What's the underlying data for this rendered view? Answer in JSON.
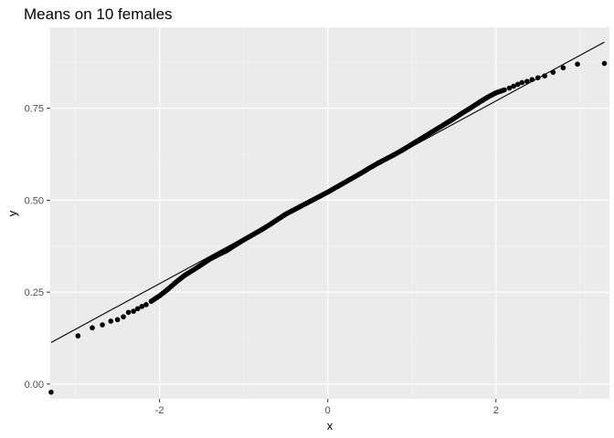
{
  "chart_data": {
    "type": "scatter",
    "title": "Means on 10 females",
    "xlabel": "x",
    "ylabel": "y",
    "xlim": [
      -3.3,
      3.35
    ],
    "ylim": [
      -0.04,
      0.97
    ],
    "x_ticks": [
      -2,
      0,
      2
    ],
    "x_tick_labels": [
      "-2",
      "0",
      "2"
    ],
    "y_ticks": [
      0.0,
      0.25,
      0.5,
      0.75
    ],
    "y_tick_labels": [
      "0.00",
      "0.25",
      "0.50",
      "0.75"
    ],
    "grid": true,
    "legend": "none",
    "reference_line": {
      "x": [
        -3.29,
        3.29
      ],
      "y": [
        0.113,
        0.93
      ]
    },
    "tail_points": [
      [
        -3.29,
        -0.022
      ],
      [
        -2.97,
        0.131
      ],
      [
        -2.8,
        0.153
      ],
      [
        -2.68,
        0.161
      ],
      [
        -2.58,
        0.171
      ],
      [
        -2.5,
        0.175
      ],
      [
        -2.43,
        0.183
      ],
      [
        -2.37,
        0.195
      ],
      [
        -2.31,
        0.198
      ],
      [
        -2.26,
        0.205
      ],
      [
        -2.21,
        0.211
      ],
      [
        -2.16,
        0.216
      ],
      [
        2.16,
        0.805
      ],
      [
        2.21,
        0.81
      ],
      [
        2.26,
        0.815
      ],
      [
        2.31,
        0.82
      ],
      [
        2.37,
        0.823
      ],
      [
        2.43,
        0.828
      ],
      [
        2.5,
        0.833
      ],
      [
        2.58,
        0.838
      ],
      [
        2.68,
        0.848
      ],
      [
        2.8,
        0.86
      ],
      [
        2.97,
        0.87
      ],
      [
        3.29,
        0.872
      ]
    ],
    "bulk_series": {
      "x": [
        -2.1,
        -2.0,
        -1.9,
        -1.8,
        -1.7,
        -1.6,
        -1.5,
        -1.4,
        -1.3,
        -1.2,
        -1.1,
        -1.0,
        -0.9,
        -0.8,
        -0.7,
        -0.6,
        -0.5,
        -0.4,
        -0.3,
        -0.2,
        -0.1,
        0.0,
        0.1,
        0.2,
        0.3,
        0.4,
        0.5,
        0.6,
        0.7,
        0.8,
        0.9,
        1.0,
        1.1,
        1.2,
        1.3,
        1.4,
        1.5,
        1.6,
        1.7,
        1.8,
        1.9,
        2.0,
        2.1
      ],
      "y": [
        0.225,
        0.24,
        0.258,
        0.278,
        0.296,
        0.31,
        0.325,
        0.34,
        0.352,
        0.363,
        0.378,
        0.392,
        0.405,
        0.418,
        0.432,
        0.447,
        0.462,
        0.474,
        0.486,
        0.498,
        0.51,
        0.522,
        0.535,
        0.548,
        0.561,
        0.574,
        0.588,
        0.601,
        0.613,
        0.625,
        0.638,
        0.652,
        0.666,
        0.68,
        0.694,
        0.708,
        0.722,
        0.737,
        0.751,
        0.766,
        0.78,
        0.792,
        0.8
      ]
    }
  }
}
